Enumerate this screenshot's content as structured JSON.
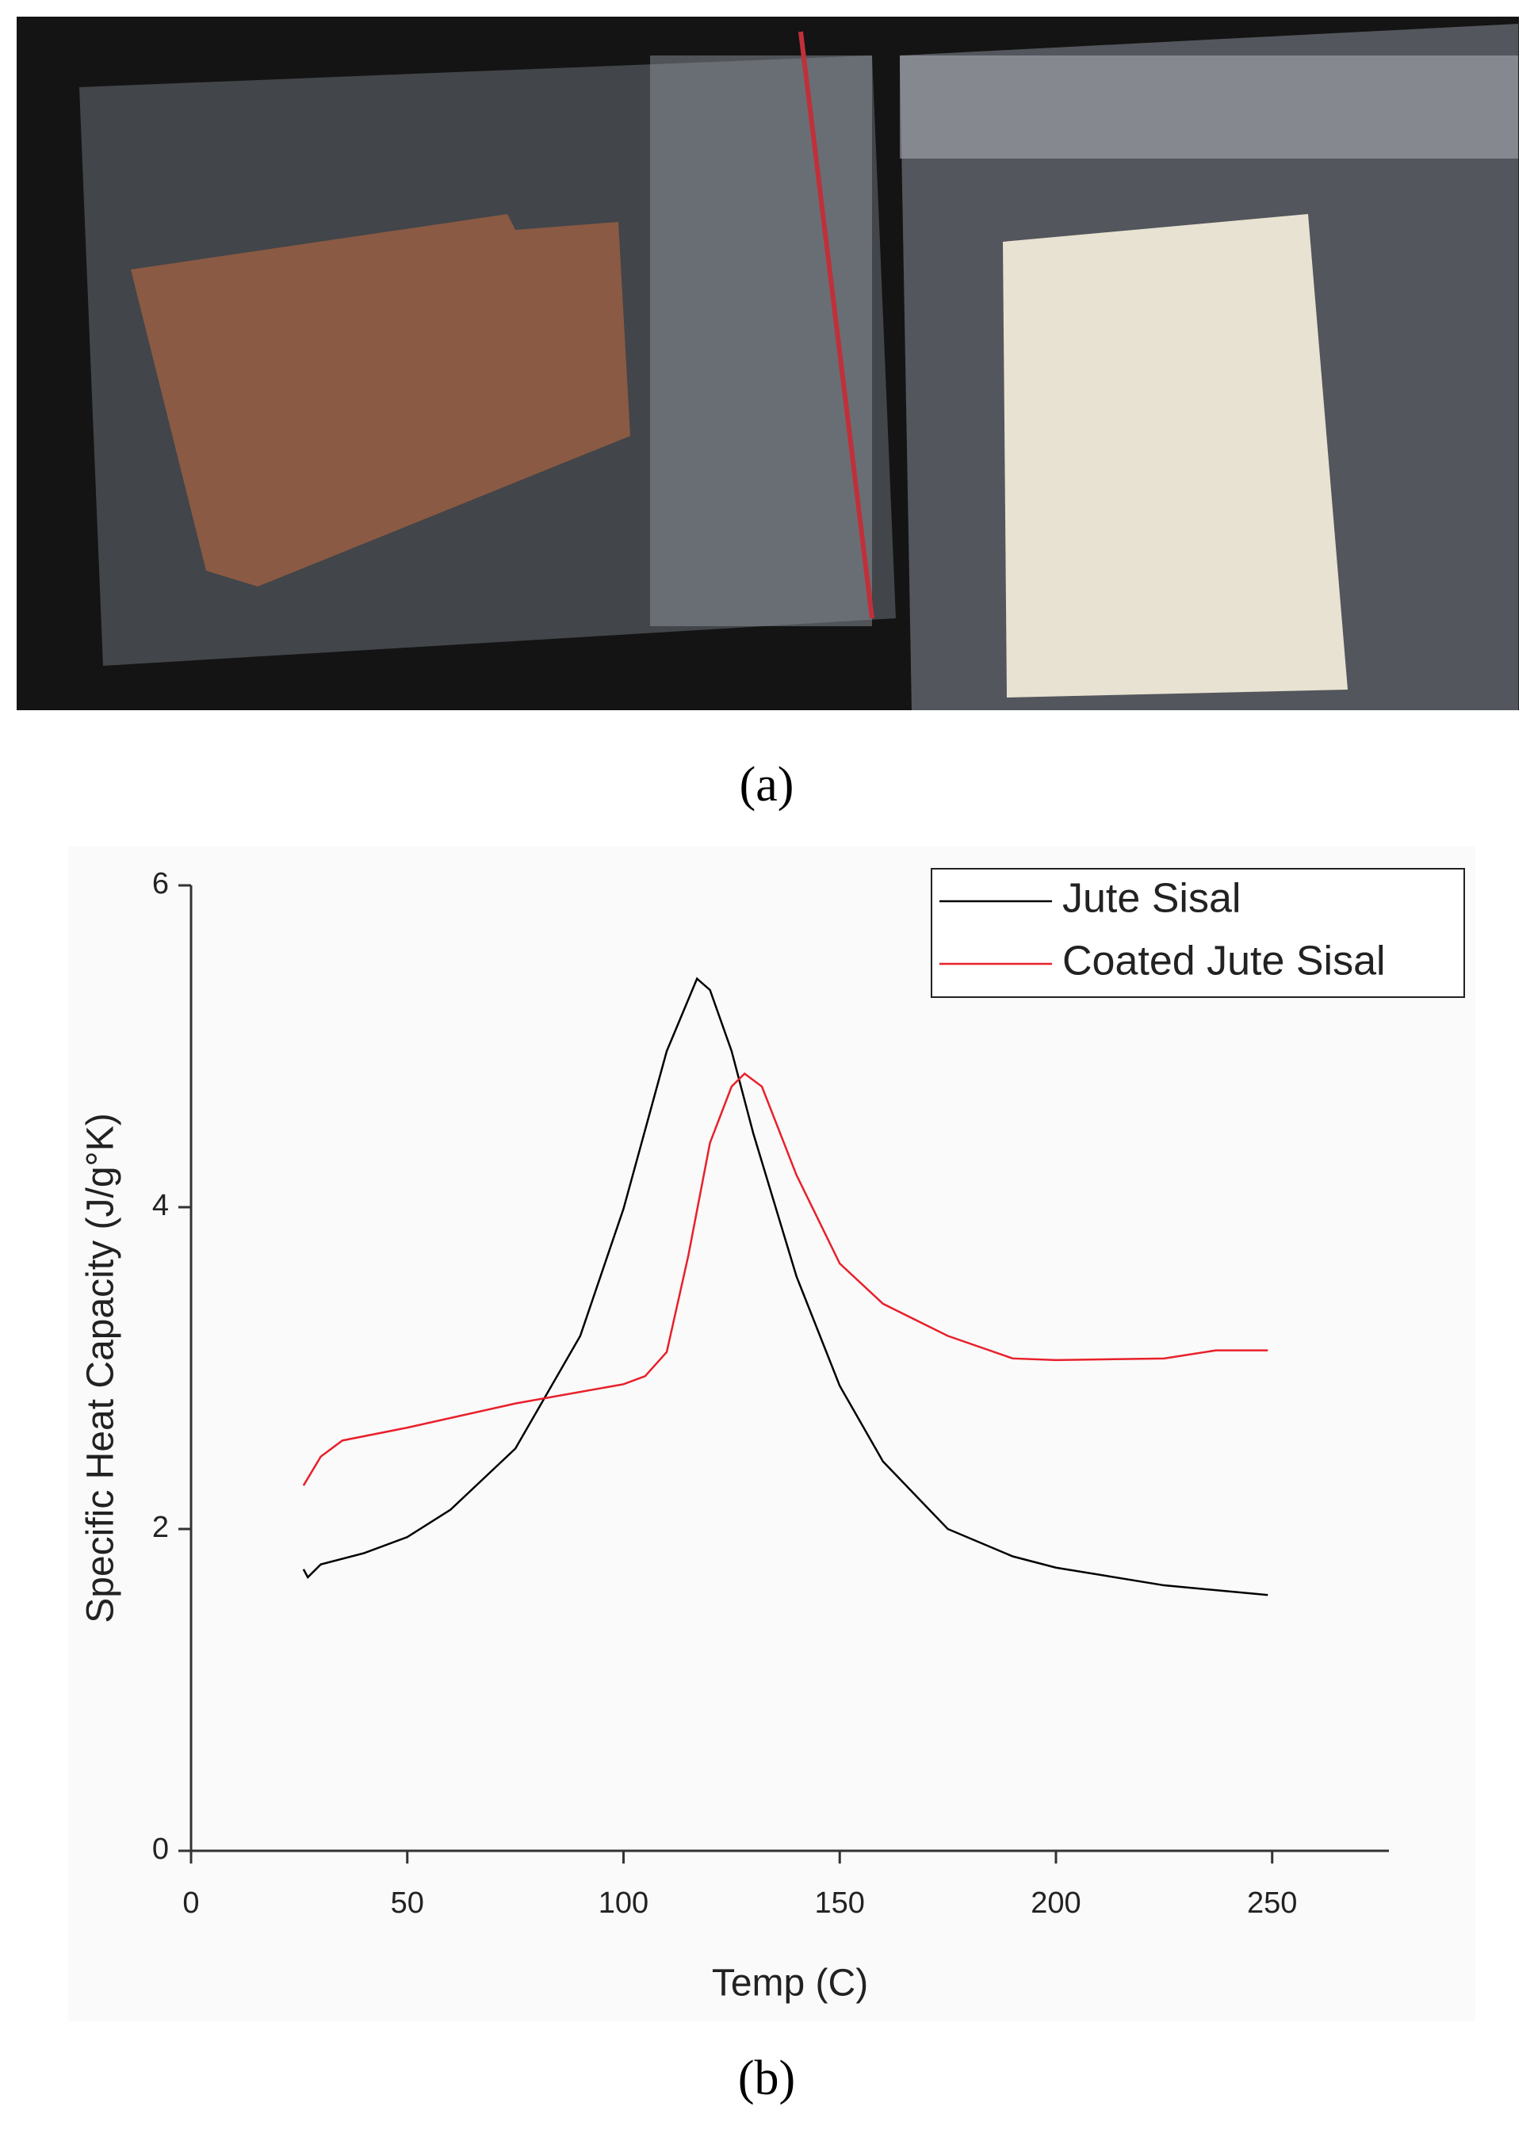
{
  "panel_labels": [
    "(a)",
    "(b)"
  ],
  "chart_data": {
    "type": "line",
    "xlabel": "Temp (C)",
    "ylabel": "Specific Heat Capacity (J/g°K)",
    "xlim": [
      0,
      277
    ],
    "xticks": [
      0,
      50,
      100,
      150,
      200,
      250
    ],
    "ylim": [
      0,
      6
    ],
    "yticks": [
      0,
      2,
      4,
      6
    ],
    "legend": "upper right",
    "series": [
      {
        "name": "Jute Sisal",
        "color": "#000000",
        "x": [
          26,
          27,
          30,
          40,
          50,
          60,
          75,
          90,
          100,
          110,
          117,
          120,
          125,
          130,
          140,
          150,
          160,
          175,
          190,
          200,
          225,
          249
        ],
        "values": [
          1.75,
          1.7,
          1.78,
          1.85,
          1.95,
          2.12,
          2.5,
          3.2,
          3.99,
          4.97,
          5.42,
          5.35,
          4.97,
          4.46,
          3.57,
          2.89,
          2.42,
          2.0,
          1.83,
          1.76,
          1.65,
          1.59
        ]
      },
      {
        "name": "Coated Jute Sisal",
        "color": "#e8202a",
        "x": [
          26,
          30,
          35,
          50,
          75,
          100,
          105,
          110,
          115,
          120,
          125,
          128,
          132,
          140,
          150,
          160,
          175,
          190,
          200,
          225,
          237,
          249
        ],
        "values": [
          2.27,
          2.45,
          2.55,
          2.63,
          2.78,
          2.9,
          2.95,
          3.1,
          3.7,
          4.4,
          4.75,
          4.83,
          4.75,
          4.2,
          3.65,
          3.4,
          3.2,
          3.06,
          3.05,
          3.06,
          3.11,
          3.11
        ]
      }
    ]
  }
}
